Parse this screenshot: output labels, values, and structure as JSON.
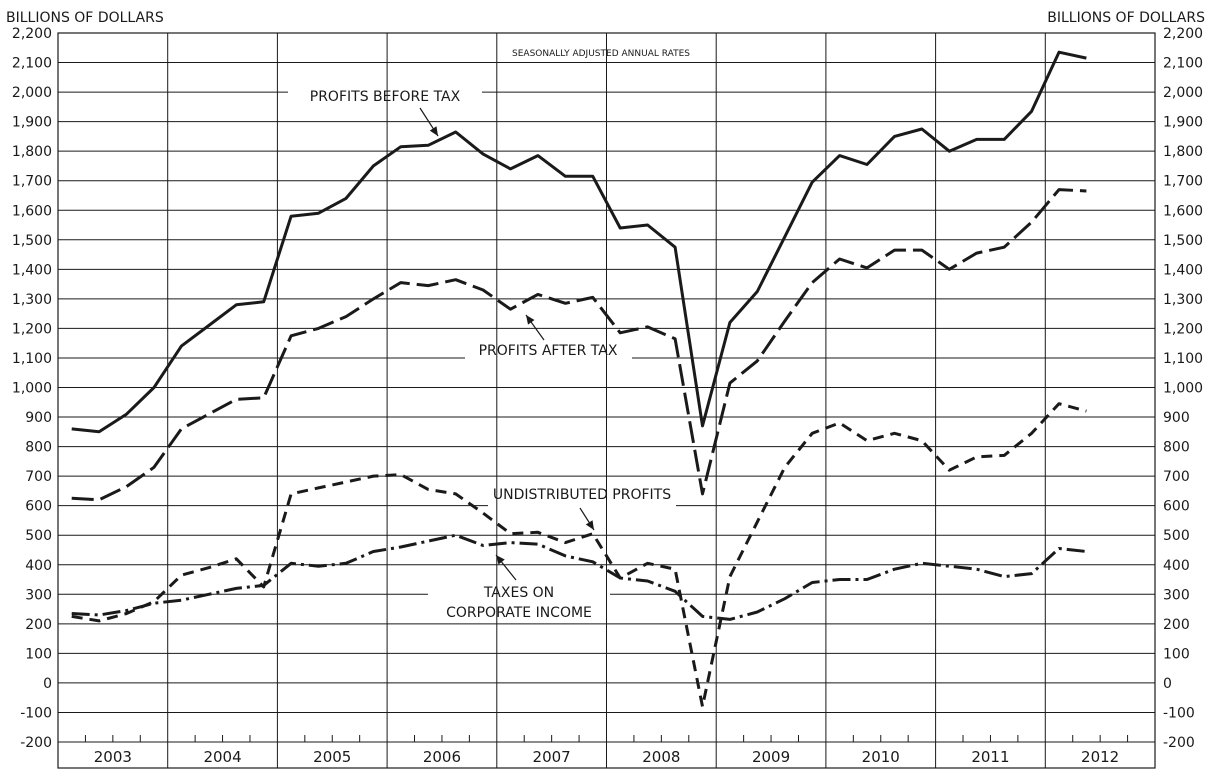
{
  "chart_data": {
    "type": "line",
    "title": "",
    "note": "SEASONALLY ADJUSTED ANNUAL RATES",
    "ylabel_left": "BILLIONS OF DOLLARS",
    "ylabel_right": "BILLIONS OF DOLLARS",
    "xlabel": "",
    "ylim": [
      -200,
      2200
    ],
    "yticks": [
      -200,
      -100,
      0,
      100,
      200,
      300,
      400,
      500,
      600,
      700,
      800,
      900,
      1000,
      1100,
      1200,
      1300,
      1400,
      1500,
      1600,
      1700,
      1800,
      1900,
      2000,
      2100,
      2200
    ],
    "ytick_labels": [
      "-200",
      "-100",
      "0",
      "100",
      "200",
      "300",
      "400",
      "500",
      "600",
      "700",
      "800",
      "900",
      "1,000",
      "1,100",
      "1,200",
      "1,300",
      "1,400",
      "1,500",
      "1,600",
      "1,700",
      "1,800",
      "1,900",
      "2,000",
      "2,100",
      "2,200"
    ],
    "years": [
      "2003",
      "2004",
      "2005",
      "2006",
      "2007",
      "2008",
      "2009",
      "2010",
      "2011",
      "2012"
    ],
    "x_quarter_range": [
      2003.0,
      2013.0
    ],
    "grid": true,
    "series": [
      {
        "name": "PROFITS BEFORE TAX",
        "dash": "solid",
        "x": [
          2003.125,
          2003.375,
          2003.625,
          2003.875,
          2004.125,
          2004.375,
          2004.625,
          2004.875,
          2005.125,
          2005.375,
          2005.625,
          2005.875,
          2006.125,
          2006.375,
          2006.625,
          2006.875,
          2007.125,
          2007.375,
          2007.625,
          2007.875,
          2008.125,
          2008.375,
          2008.625,
          2008.875,
          2009.125,
          2009.375,
          2009.625,
          2009.875,
          2010.125,
          2010.375,
          2010.625,
          2010.875,
          2011.125,
          2011.375,
          2011.625,
          2011.875,
          2012.125,
          2012.375
        ],
        "values": [
          860,
          850,
          910,
          1000,
          1140,
          1210,
          1280,
          1290,
          1580,
          1590,
          1640,
          1750,
          1815,
          1820,
          1865,
          1790,
          1740,
          1785,
          1715,
          1715,
          1540,
          1550,
          1475,
          870,
          1220,
          1325,
          1510,
          1695,
          1785,
          1755,
          1850,
          1875,
          1800,
          1840,
          1840,
          1935,
          2135,
          2115
        ]
      },
      {
        "name": "PROFITS AFTER TAX",
        "dash": "long-dash",
        "x": [
          2003.125,
          2003.375,
          2003.625,
          2003.875,
          2004.125,
          2004.375,
          2004.625,
          2004.875,
          2005.125,
          2005.375,
          2005.625,
          2005.875,
          2006.125,
          2006.375,
          2006.625,
          2006.875,
          2007.125,
          2007.375,
          2007.625,
          2007.875,
          2008.125,
          2008.375,
          2008.625,
          2008.875,
          2009.125,
          2009.375,
          2009.625,
          2009.875,
          2010.125,
          2010.375,
          2010.625,
          2010.875,
          2011.125,
          2011.375,
          2011.625,
          2011.875,
          2012.125,
          2012.375
        ],
        "values": [
          625,
          620,
          665,
          730,
          860,
          910,
          960,
          965,
          1175,
          1200,
          1240,
          1300,
          1355,
          1345,
          1365,
          1330,
          1265,
          1315,
          1285,
          1305,
          1185,
          1205,
          1165,
          640,
          1015,
          1090,
          1225,
          1355,
          1435,
          1405,
          1465,
          1465,
          1400,
          1455,
          1475,
          1560,
          1670,
          1665
        ]
      },
      {
        "name": "UNDISTRIBUTED PROFITS",
        "dash": "short-dash",
        "x": [
          2003.125,
          2003.375,
          2003.625,
          2003.875,
          2004.125,
          2004.375,
          2004.625,
          2004.875,
          2005.125,
          2005.375,
          2005.625,
          2005.875,
          2006.125,
          2006.375,
          2006.625,
          2006.875,
          2007.125,
          2007.375,
          2007.625,
          2007.875,
          2008.125,
          2008.375,
          2008.625,
          2008.875,
          2009.125,
          2009.375,
          2009.625,
          2009.875,
          2010.125,
          2010.375,
          2010.625,
          2010.875,
          2011.125,
          2011.375,
          2011.625,
          2011.875,
          2012.125,
          2012.375
        ],
        "values": [
          225,
          210,
          235,
          275,
          365,
          390,
          420,
          325,
          640,
          660,
          680,
          700,
          705,
          655,
          640,
          575,
          505,
          510,
          475,
          505,
          355,
          405,
          385,
          -80,
          360,
          545,
          730,
          845,
          880,
          820,
          845,
          820,
          720,
          765,
          770,
          845,
          945,
          920
        ]
      },
      {
        "name": "TAXES ON CORPORATE INCOME",
        "dash": "dash-dot",
        "x": [
          2003.125,
          2003.375,
          2003.625,
          2003.875,
          2004.125,
          2004.375,
          2004.625,
          2004.875,
          2005.125,
          2005.375,
          2005.625,
          2005.875,
          2006.125,
          2006.375,
          2006.625,
          2006.875,
          2007.125,
          2007.375,
          2007.625,
          2007.875,
          2008.125,
          2008.375,
          2008.625,
          2008.875,
          2009.125,
          2009.375,
          2009.625,
          2009.875,
          2010.125,
          2010.375,
          2010.625,
          2010.875,
          2011.125,
          2011.375,
          2011.625,
          2011.875,
          2012.125,
          2012.375
        ],
        "values": [
          235,
          230,
          245,
          270,
          280,
          300,
          320,
          330,
          405,
          395,
          405,
          445,
          460,
          480,
          500,
          465,
          475,
          470,
          430,
          410,
          355,
          345,
          310,
          225,
          215,
          240,
          285,
          340,
          350,
          350,
          385,
          405,
          395,
          385,
          360,
          370,
          455,
          445
        ]
      }
    ],
    "annotations": [
      {
        "text": "PROFITS BEFORE TAX",
        "series": "PROFITS BEFORE TAX"
      },
      {
        "text": "PROFITS AFTER TAX",
        "series": "PROFITS AFTER TAX"
      },
      {
        "text": "UNDISTRIBUTED PROFITS",
        "series": "UNDISTRIBUTED PROFITS"
      },
      {
        "text": "TAXES ON",
        "series": "TAXES ON CORPORATE INCOME"
      },
      {
        "text": "CORPORATE INCOME",
        "series": "TAXES ON CORPORATE INCOME"
      }
    ]
  }
}
